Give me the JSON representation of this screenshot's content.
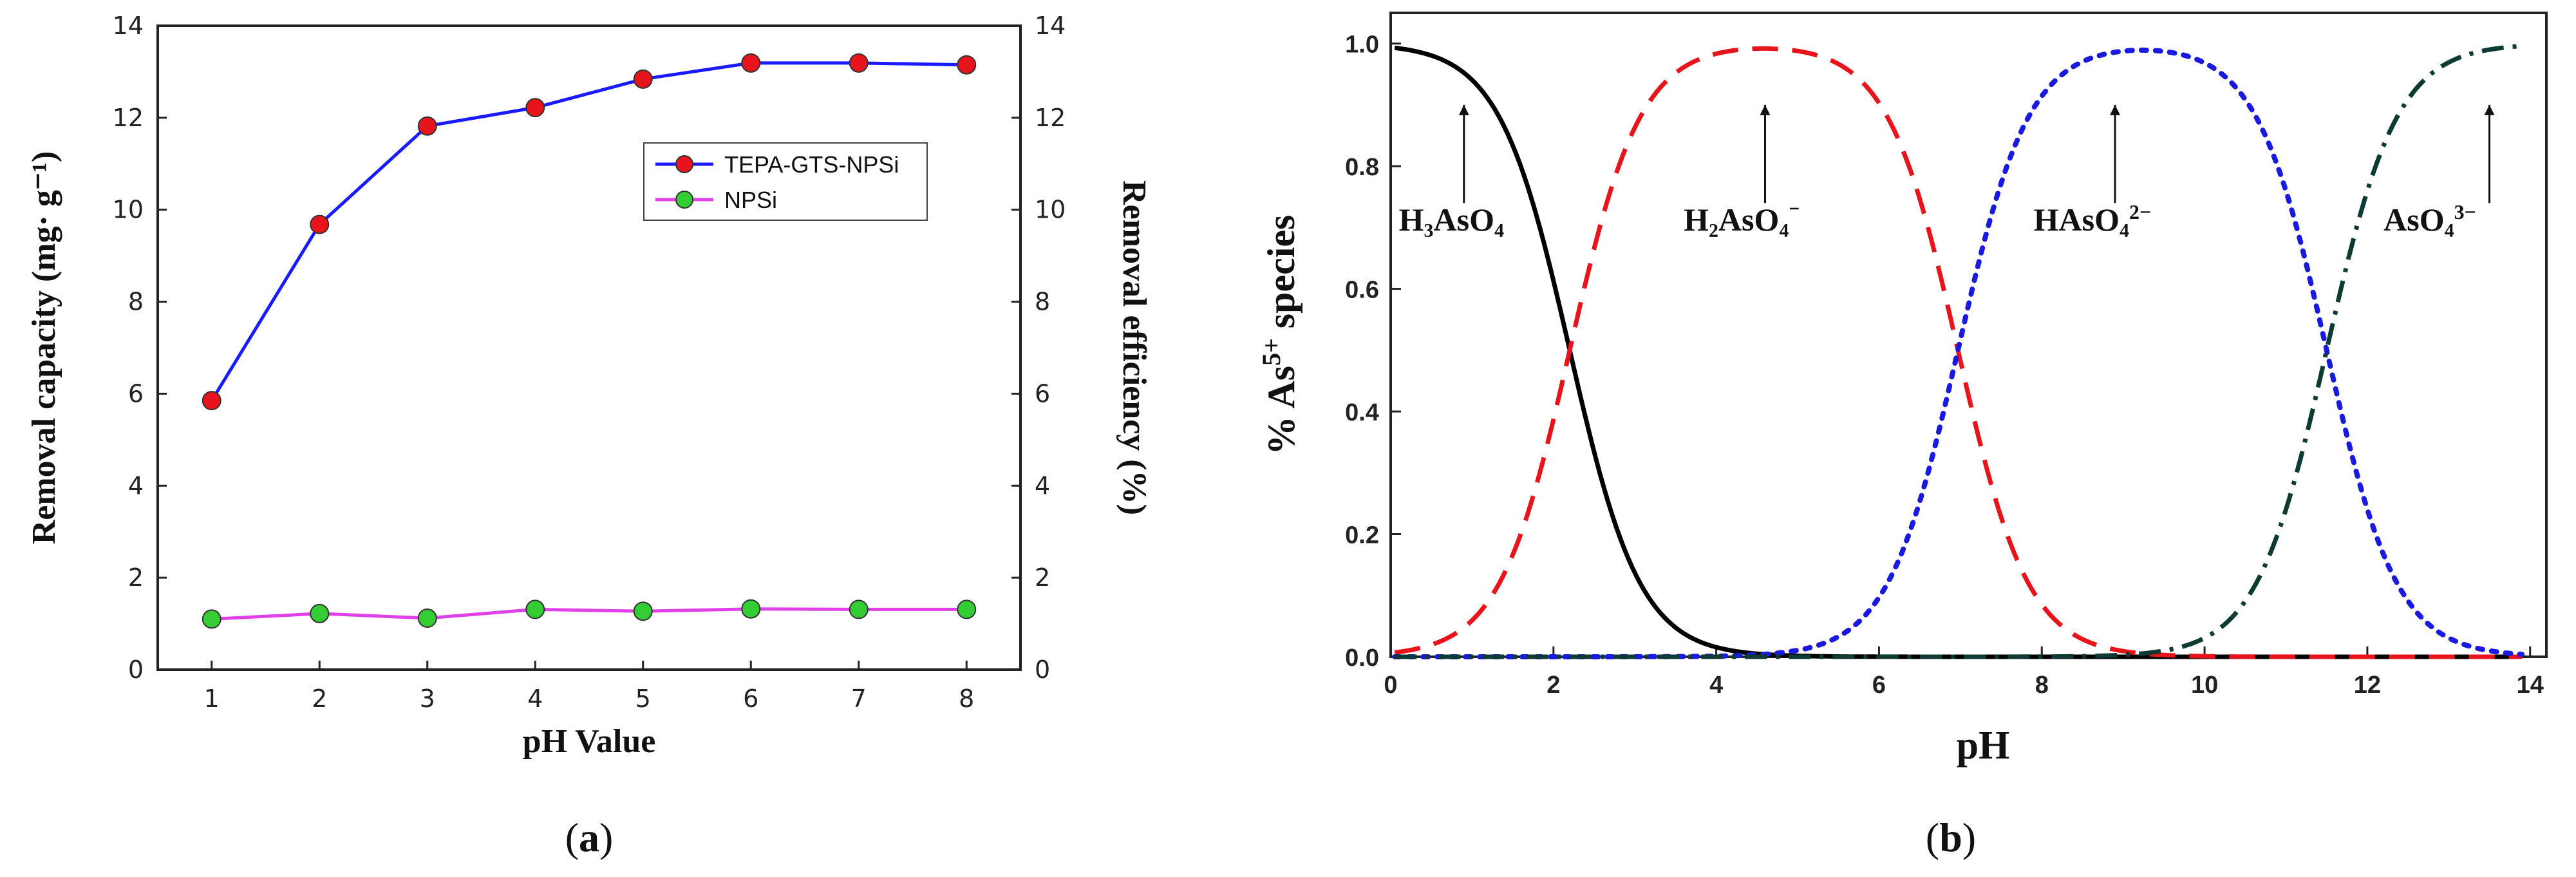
{
  "chart_data": [
    {
      "type": "line",
      "panel": "a",
      "caption": "a",
      "xlabel": "pH Value",
      "ylabel": "Removal capacity (mg· g⁻¹)",
      "ylabel_right": "Removal efficiency (%)",
      "xlim": [
        0.5,
        8.5
      ],
      "ylim": [
        0,
        14
      ],
      "ylim_right": [
        0,
        14
      ],
      "xticks": [
        1,
        2,
        3,
        4,
        5,
        6,
        7,
        8
      ],
      "yticks": [
        0,
        2,
        4,
        6,
        8,
        10,
        12,
        14
      ],
      "yticks_right": [
        0,
        2,
        4,
        6,
        8,
        10,
        12,
        14
      ],
      "legend_position": "upper-right",
      "series": [
        {
          "name": "TEPA-GTS-NPSi",
          "color": "#1a1aff",
          "marker_color": "#e8141c",
          "x": [
            1,
            2,
            3,
            4,
            5,
            6,
            7,
            8
          ],
          "values": [
            5.85,
            9.68,
            11.82,
            12.22,
            12.84,
            13.19,
            13.19,
            13.15
          ]
        },
        {
          "name": "NPSi",
          "color": "#e040e8",
          "marker_color": "#33cc33",
          "x": [
            1,
            2,
            3,
            4,
            5,
            6,
            7,
            8
          ],
          "values": [
            1.1,
            1.22,
            1.12,
            1.31,
            1.27,
            1.32,
            1.31,
            1.31
          ]
        }
      ]
    },
    {
      "type": "line",
      "panel": "b",
      "caption": "b",
      "xlabel": "pH",
      "ylabel_prefix": "% As",
      "ylabel_superscript": "5+",
      "ylabel_suffix": " species",
      "xlim": [
        0,
        14.2
      ],
      "ylim": [
        0,
        1.05
      ],
      "xticks": [
        0,
        2,
        4,
        6,
        8,
        10,
        12,
        14
      ],
      "yticks": [
        "0.0",
        "0.2",
        "0.4",
        "0.6",
        "0.8",
        "1.0"
      ],
      "pKa": [
        2.2,
        6.97,
        11.5
      ],
      "series": [
        {
          "name": "H₃AsO₄",
          "label_main": "H₃AsO₄",
          "label_sup": "",
          "label_ph": 0.1,
          "arrow_ph": 0.9,
          "color": "#000000",
          "style": "solid"
        },
        {
          "name": "H₂AsO₄⁻",
          "label_main": "H₂AsO₄",
          "label_sup": "⁻",
          "label_ph": 3.6,
          "arrow_ph": 4.6,
          "color": "#e8141c",
          "style": "dashed"
        },
        {
          "name": "HAsO₄²⁻",
          "label_main": "HAsO₄",
          "label_sup": "2−",
          "label_ph": 7.9,
          "arrow_ph": 8.9,
          "color": "#1a1adf",
          "style": "dotted"
        },
        {
          "name": "AsO₄³⁻",
          "label_main": "AsO₄",
          "label_sup": "3−",
          "label_ph": 12.2,
          "arrow_ph": 13.5,
          "color": "#0d3b33",
          "style": "dashdot"
        }
      ]
    }
  ]
}
